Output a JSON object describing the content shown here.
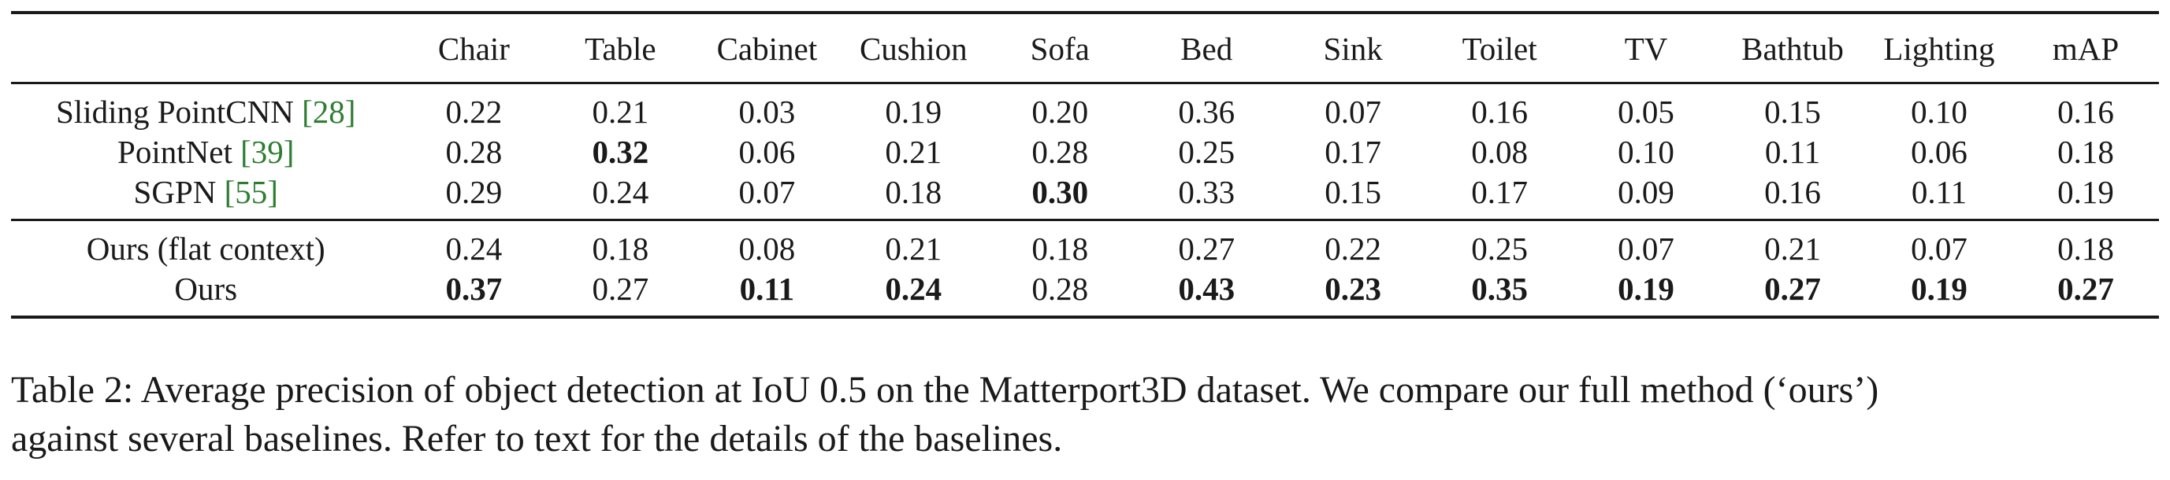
{
  "table": {
    "columns": [
      "",
      "Chair",
      "Table",
      "Cabinet",
      "Cushion",
      "Sofa",
      "Bed",
      "Sink",
      "Toilet",
      "TV",
      "Bathtub",
      "Lighting",
      "mAP"
    ],
    "groups": [
      {
        "rows": [
          {
            "method": "Sliding PointCNN",
            "cite": "[28]",
            "cells": [
              {
                "v": "0.22",
                "bold": false
              },
              {
                "v": "0.21",
                "bold": false
              },
              {
                "v": "0.03",
                "bold": false
              },
              {
                "v": "0.19",
                "bold": false
              },
              {
                "v": "0.20",
                "bold": false
              },
              {
                "v": "0.36",
                "bold": false
              },
              {
                "v": "0.07",
                "bold": false
              },
              {
                "v": "0.16",
                "bold": false
              },
              {
                "v": "0.05",
                "bold": false
              },
              {
                "v": "0.15",
                "bold": false
              },
              {
                "v": "0.10",
                "bold": false
              },
              {
                "v": "0.16",
                "bold": false
              }
            ]
          },
          {
            "method": "PointNet",
            "cite": "[39]",
            "cells": [
              {
                "v": "0.28",
                "bold": false
              },
              {
                "v": "0.32",
                "bold": true
              },
              {
                "v": "0.06",
                "bold": false
              },
              {
                "v": "0.21",
                "bold": false
              },
              {
                "v": "0.28",
                "bold": false
              },
              {
                "v": "0.25",
                "bold": false
              },
              {
                "v": "0.17",
                "bold": false
              },
              {
                "v": "0.08",
                "bold": false
              },
              {
                "v": "0.10",
                "bold": false
              },
              {
                "v": "0.11",
                "bold": false
              },
              {
                "v": "0.06",
                "bold": false
              },
              {
                "v": "0.18",
                "bold": false
              }
            ]
          },
          {
            "method": "SGPN",
            "cite": "[55]",
            "cells": [
              {
                "v": "0.29",
                "bold": false
              },
              {
                "v": "0.24",
                "bold": false
              },
              {
                "v": "0.07",
                "bold": false
              },
              {
                "v": "0.18",
                "bold": false
              },
              {
                "v": "0.30",
                "bold": true
              },
              {
                "v": "0.33",
                "bold": false
              },
              {
                "v": "0.15",
                "bold": false
              },
              {
                "v": "0.17",
                "bold": false
              },
              {
                "v": "0.09",
                "bold": false
              },
              {
                "v": "0.16",
                "bold": false
              },
              {
                "v": "0.11",
                "bold": false
              },
              {
                "v": "0.19",
                "bold": false
              }
            ]
          }
        ]
      },
      {
        "rows": [
          {
            "method": "Ours (flat context)",
            "cite": "",
            "cells": [
              {
                "v": "0.24",
                "bold": false
              },
              {
                "v": "0.18",
                "bold": false
              },
              {
                "v": "0.08",
                "bold": false
              },
              {
                "v": "0.21",
                "bold": false
              },
              {
                "v": "0.18",
                "bold": false
              },
              {
                "v": "0.27",
                "bold": false
              },
              {
                "v": "0.22",
                "bold": false
              },
              {
                "v": "0.25",
                "bold": false
              },
              {
                "v": "0.07",
                "bold": false
              },
              {
                "v": "0.21",
                "bold": false
              },
              {
                "v": "0.07",
                "bold": false
              },
              {
                "v": "0.18",
                "bold": false
              }
            ]
          },
          {
            "method": "Ours",
            "cite": "",
            "cells": [
              {
                "v": "0.37",
                "bold": true
              },
              {
                "v": "0.27",
                "bold": false
              },
              {
                "v": "0.11",
                "bold": true
              },
              {
                "v": "0.24",
                "bold": true
              },
              {
                "v": "0.28",
                "bold": false
              },
              {
                "v": "0.43",
                "bold": true
              },
              {
                "v": "0.23",
                "bold": true
              },
              {
                "v": "0.35",
                "bold": true
              },
              {
                "v": "0.19",
                "bold": true
              },
              {
                "v": "0.27",
                "bold": true
              },
              {
                "v": "0.19",
                "bold": true
              },
              {
                "v": "0.27",
                "bold": true
              }
            ]
          }
        ]
      }
    ]
  },
  "caption": {
    "line1": "Table 2: Average precision of object detection at IoU 0.5 on the Matterport3D dataset. We compare our full method (‘ours’)",
    "line2": "against several baselines. Refer to text for the details of the baselines."
  },
  "colors": {
    "text": "#1a1a1a",
    "citation": "#2e7d32"
  }
}
